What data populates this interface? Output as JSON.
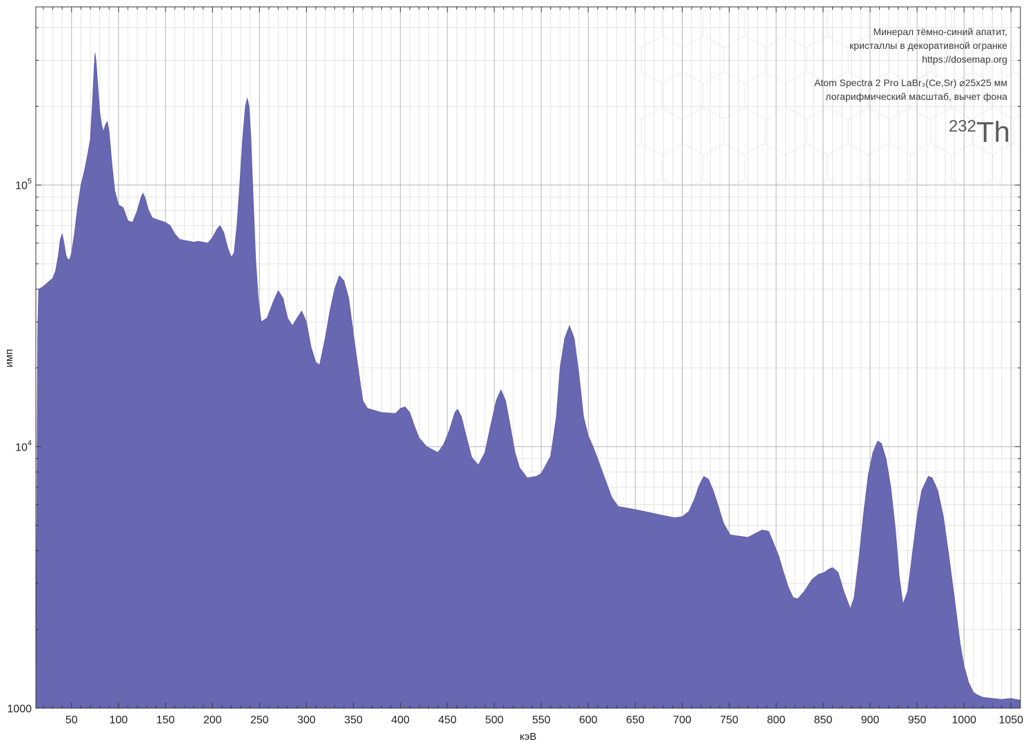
{
  "chart_data": {
    "type": "area",
    "x_scale": "linear",
    "y_scale": "log",
    "xlim": [
      12,
      1060
    ],
    "ylim": [
      1000,
      480000
    ],
    "xlabel": "кэВ",
    "ylabel": "имп",
    "x_ticks": [
      50,
      100,
      150,
      200,
      250,
      300,
      350,
      400,
      450,
      500,
      550,
      600,
      650,
      700,
      750,
      800,
      850,
      900,
      950,
      1000,
      1050
    ],
    "y_ticks": [
      {
        "value": 1000,
        "label": "1000"
      },
      {
        "value": 10000,
        "label": "10^4"
      },
      {
        "value": 100000,
        "label": "10^5"
      }
    ],
    "grid": true,
    "fill_color": "#6767b2",
    "info_lines": [
      "Минерал тёмно-синий апатит,",
      "кристаллы в декоративной огранке",
      "https://dosemap.org",
      "Atom Spectra 2 Pro LaBr₃(Ce,Sr) ⌀25x25 мм",
      "логарифмический масштаб, вычет фона"
    ],
    "isotope": {
      "mass": "232",
      "symbol": "Th"
    },
    "series": [
      {
        "points": [
          [
            12,
            1000
          ],
          [
            13,
            6000
          ],
          [
            14,
            28000
          ],
          [
            15,
            40000
          ],
          [
            20,
            41000
          ],
          [
            25,
            42500
          ],
          [
            30,
            44000
          ],
          [
            33,
            47000
          ],
          [
            36,
            54000
          ],
          [
            38,
            62000
          ],
          [
            40,
            65000
          ],
          [
            42,
            60000
          ],
          [
            44,
            54000
          ],
          [
            46,
            52000
          ],
          [
            48,
            52000
          ],
          [
            50,
            55000
          ],
          [
            53,
            65000
          ],
          [
            56,
            80000
          ],
          [
            60,
            100000
          ],
          [
            64,
            115000
          ],
          [
            67,
            130000
          ],
          [
            70,
            150000
          ],
          [
            72,
            200000
          ],
          [
            74,
            280000
          ],
          [
            75,
            320000
          ],
          [
            76,
            300000
          ],
          [
            78,
            240000
          ],
          [
            80,
            190000
          ],
          [
            82,
            170000
          ],
          [
            84,
            160000
          ],
          [
            86,
            170000
          ],
          [
            88,
            175000
          ],
          [
            90,
            160000
          ],
          [
            93,
            120000
          ],
          [
            96,
            95000
          ],
          [
            100,
            84000
          ],
          [
            105,
            82000
          ],
          [
            110,
            73000
          ],
          [
            115,
            72000
          ],
          [
            120,
            80000
          ],
          [
            124,
            90000
          ],
          [
            126,
            93000
          ],
          [
            128,
            90000
          ],
          [
            132,
            80000
          ],
          [
            136,
            75000
          ],
          [
            140,
            74000
          ],
          [
            150,
            72000
          ],
          [
            155,
            70000
          ],
          [
            160,
            65000
          ],
          [
            165,
            62000
          ],
          [
            175,
            61000
          ],
          [
            180,
            60500
          ],
          [
            185,
            61000
          ],
          [
            195,
            60000
          ],
          [
            200,
            63000
          ],
          [
            205,
            68000
          ],
          [
            208,
            70000
          ],
          [
            212,
            66000
          ],
          [
            216,
            58000
          ],
          [
            220,
            53000
          ],
          [
            223,
            55000
          ],
          [
            226,
            70000
          ],
          [
            229,
            100000
          ],
          [
            232,
            150000
          ],
          [
            235,
            200000
          ],
          [
            237,
            215000
          ],
          [
            239,
            200000
          ],
          [
            241,
            150000
          ],
          [
            243,
            95000
          ],
          [
            246,
            52000
          ],
          [
            249,
            36000
          ],
          [
            252,
            30000
          ],
          [
            258,
            31000
          ],
          [
            265,
            36000
          ],
          [
            270,
            39500
          ],
          [
            275,
            37000
          ],
          [
            280,
            31000
          ],
          [
            285,
            29000
          ],
          [
            290,
            31000
          ],
          [
            295,
            33000
          ],
          [
            300,
            30000
          ],
          [
            305,
            24000
          ],
          [
            310,
            21000
          ],
          [
            314,
            20500
          ],
          [
            320,
            26000
          ],
          [
            325,
            33000
          ],
          [
            330,
            40000
          ],
          [
            335,
            45000
          ],
          [
            340,
            43000
          ],
          [
            345,
            37000
          ],
          [
            350,
            27000
          ],
          [
            355,
            20000
          ],
          [
            360,
            15000
          ],
          [
            365,
            14000
          ],
          [
            380,
            13500
          ],
          [
            395,
            13400
          ],
          [
            400,
            14000
          ],
          [
            405,
            14200
          ],
          [
            410,
            13500
          ],
          [
            415,
            12000
          ],
          [
            420,
            10800
          ],
          [
            428,
            10000
          ],
          [
            440,
            9500
          ],
          [
            446,
            10200
          ],
          [
            452,
            11500
          ],
          [
            458,
            13500
          ],
          [
            461,
            13900
          ],
          [
            465,
            13000
          ],
          [
            470,
            11000
          ],
          [
            476,
            9100
          ],
          [
            483,
            8500
          ],
          [
            490,
            9500
          ],
          [
            496,
            12000
          ],
          [
            502,
            15000
          ],
          [
            507,
            16500
          ],
          [
            512,
            15000
          ],
          [
            517,
            12000
          ],
          [
            522,
            9500
          ],
          [
            527,
            8300
          ],
          [
            535,
            7600
          ],
          [
            545,
            7700
          ],
          [
            550,
            7900
          ],
          [
            560,
            9200
          ],
          [
            566,
            13000
          ],
          [
            570,
            20000
          ],
          [
            575,
            26000
          ],
          [
            580,
            29000
          ],
          [
            585,
            26000
          ],
          [
            590,
            19000
          ],
          [
            595,
            13000
          ],
          [
            600,
            11000
          ],
          [
            605,
            10000
          ],
          [
            610,
            9000
          ],
          [
            618,
            7500
          ],
          [
            625,
            6400
          ],
          [
            632,
            5900
          ],
          [
            650,
            5750
          ],
          [
            665,
            5600
          ],
          [
            680,
            5450
          ],
          [
            692,
            5350
          ],
          [
            700,
            5400
          ],
          [
            707,
            5650
          ],
          [
            713,
            6300
          ],
          [
            718,
            7100
          ],
          [
            723,
            7700
          ],
          [
            728,
            7500
          ],
          [
            733,
            6800
          ],
          [
            738,
            6000
          ],
          [
            744,
            5100
          ],
          [
            751,
            4600
          ],
          [
            760,
            4550
          ],
          [
            770,
            4500
          ],
          [
            780,
            4700
          ],
          [
            785,
            4800
          ],
          [
            792,
            4750
          ],
          [
            797,
            4300
          ],
          [
            803,
            3800
          ],
          [
            808,
            3300
          ],
          [
            813,
            2900
          ],
          [
            818,
            2650
          ],
          [
            823,
            2620
          ],
          [
            830,
            2800
          ],
          [
            838,
            3100
          ],
          [
            845,
            3250
          ],
          [
            851,
            3300
          ],
          [
            856,
            3400
          ],
          [
            860,
            3450
          ],
          [
            866,
            3300
          ],
          [
            872,
            2800
          ],
          [
            879,
            2400
          ],
          [
            883,
            2650
          ],
          [
            888,
            3700
          ],
          [
            893,
            5500
          ],
          [
            898,
            7800
          ],
          [
            903,
            9500
          ],
          [
            908,
            10500
          ],
          [
            912,
            10300
          ],
          [
            917,
            9000
          ],
          [
            922,
            7000
          ],
          [
            927,
            4800
          ],
          [
            931,
            3200
          ],
          [
            935,
            2500
          ],
          [
            940,
            2800
          ],
          [
            945,
            3900
          ],
          [
            950,
            5400
          ],
          [
            955,
            6800
          ],
          [
            962,
            7700
          ],
          [
            966,
            7600
          ],
          [
            972,
            6800
          ],
          [
            978,
            5400
          ],
          [
            984,
            3800
          ],
          [
            990,
            2600
          ],
          [
            996,
            1750
          ],
          [
            1000,
            1450
          ],
          [
            1005,
            1250
          ],
          [
            1010,
            1150
          ],
          [
            1015,
            1120
          ],
          [
            1020,
            1100
          ],
          [
            1030,
            1090
          ],
          [
            1040,
            1080
          ],
          [
            1050,
            1090
          ],
          [
            1055,
            1080
          ],
          [
            1060,
            1075
          ]
        ]
      }
    ]
  }
}
